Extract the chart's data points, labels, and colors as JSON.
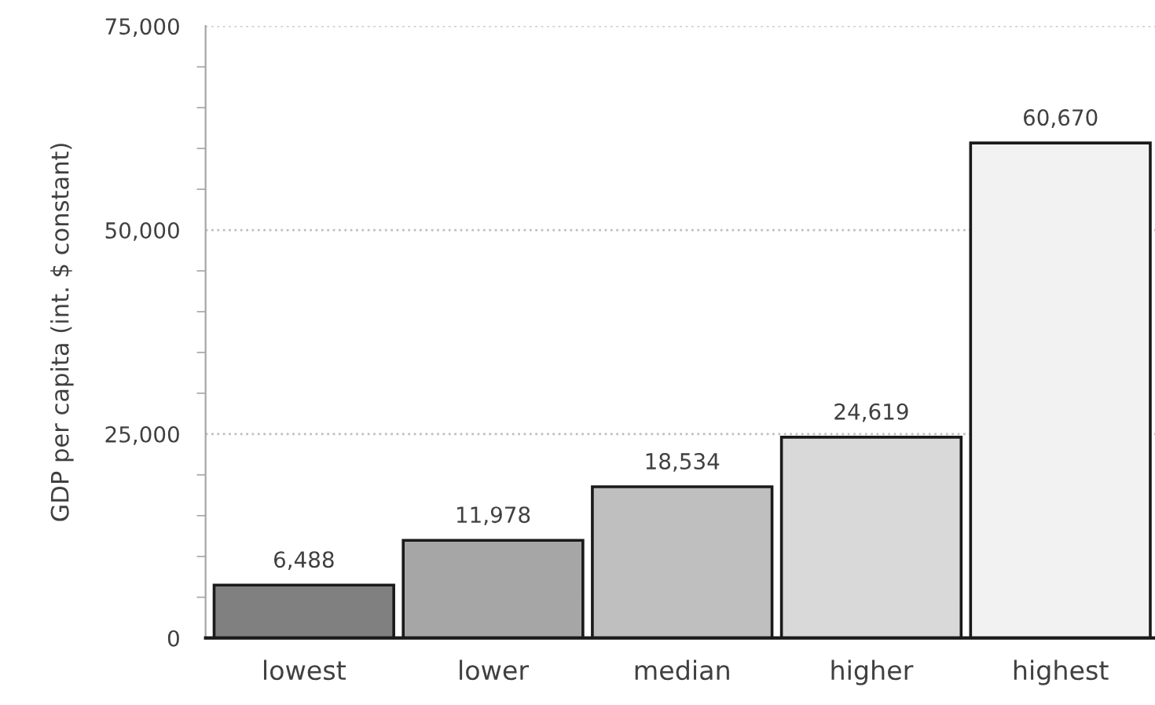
{
  "chart_data": {
    "type": "bar",
    "ylabel": "GDP per capita (int. $ constant)",
    "categories": [
      "lowest",
      "lower",
      "median",
      "higher",
      "highest"
    ],
    "values": [
      6488,
      11978,
      18534,
      24619,
      60670
    ],
    "colors": [
      "#808080",
      "#a6a6a6",
      "#bfbfbf",
      "#d9d9d9",
      "#f2f2f2"
    ],
    "value_labels": [
      "6,488",
      "11,978",
      "18,534",
      "24,619",
      "60,670"
    ],
    "ylim": [
      0,
      75000
    ],
    "yticks": [
      {
        "value": 0,
        "label": "0"
      },
      {
        "value": 5000,
        "label": null
      },
      {
        "value": 10000,
        "label": null
      },
      {
        "value": 15000,
        "label": null
      },
      {
        "value": 20000,
        "label": null
      },
      {
        "value": 25000,
        "label": "25,000"
      },
      {
        "value": 30000,
        "label": null
      },
      {
        "value": 35000,
        "label": null
      },
      {
        "value": 40000,
        "label": null
      },
      {
        "value": 45000,
        "label": null
      },
      {
        "value": 50000,
        "label": "50,000"
      },
      {
        "value": 55000,
        "label": null
      },
      {
        "value": 60000,
        "label": null
      },
      {
        "value": 65000,
        "label": null
      },
      {
        "value": 70000,
        "label": null
      },
      {
        "value": 75000,
        "label": "75,000"
      }
    ],
    "grid": "y"
  }
}
